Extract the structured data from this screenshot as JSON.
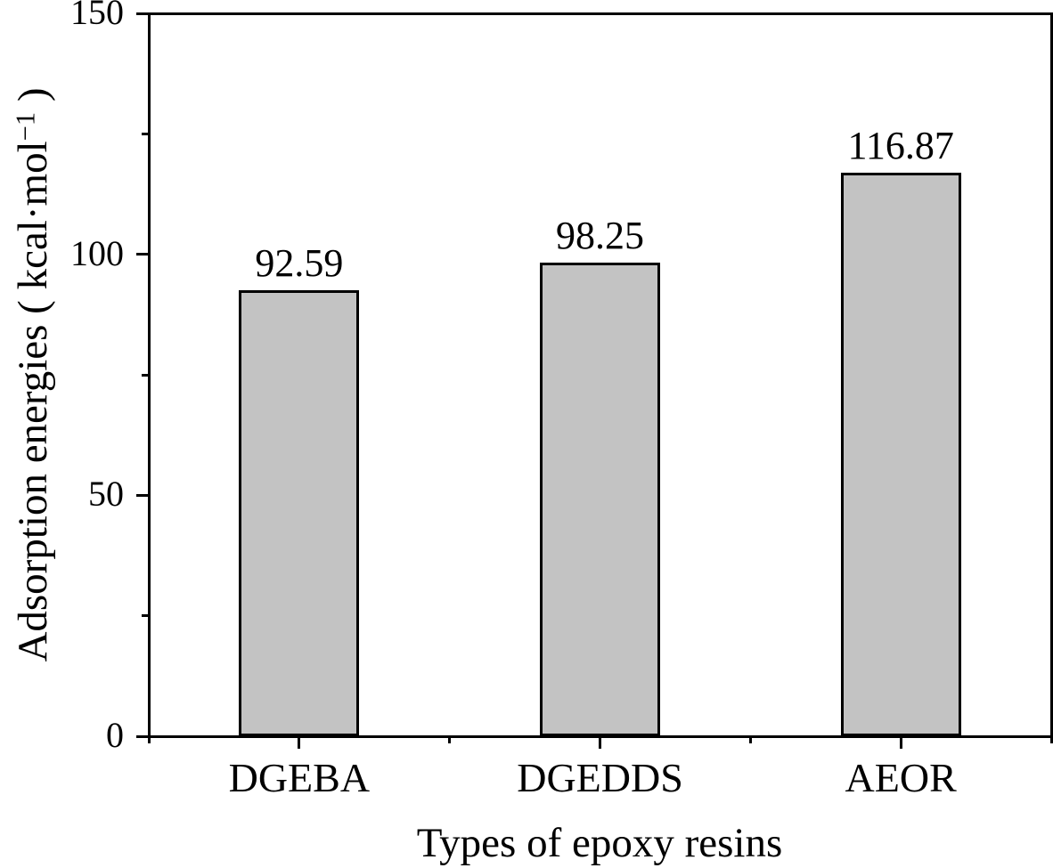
{
  "figure": {
    "background_color": "#ffffff",
    "text_color": "#000000"
  },
  "chart_data": {
    "type": "bar",
    "title": "",
    "categories": [
      "DGEBA",
      "DGEDDS",
      "AEOR"
    ],
    "values": [
      92.59,
      98.25,
      116.87
    ],
    "value_labels": [
      "92.59",
      "98.25",
      "116.87"
    ],
    "xlabel": "Types of epoxy resins",
    "ylabel": "Adsorption energies ( kcal·mol⁻¹ )",
    "ylabel_superscript": "−1",
    "ylim": [
      0,
      150
    ],
    "y_major_ticks": [
      0,
      50,
      100,
      150
    ],
    "y_major_tick_labels": [
      "0",
      "50",
      "100",
      "150"
    ],
    "y_minor_ticks": [
      25,
      75,
      125
    ],
    "x_minor_ticks_at_category_boundaries": true,
    "bar_fill_color": "#c3c3c3",
    "bar_border_color": "#000000",
    "axis_color": "#000000",
    "grid": false,
    "legend": "none",
    "ticks_direction": "out"
  }
}
